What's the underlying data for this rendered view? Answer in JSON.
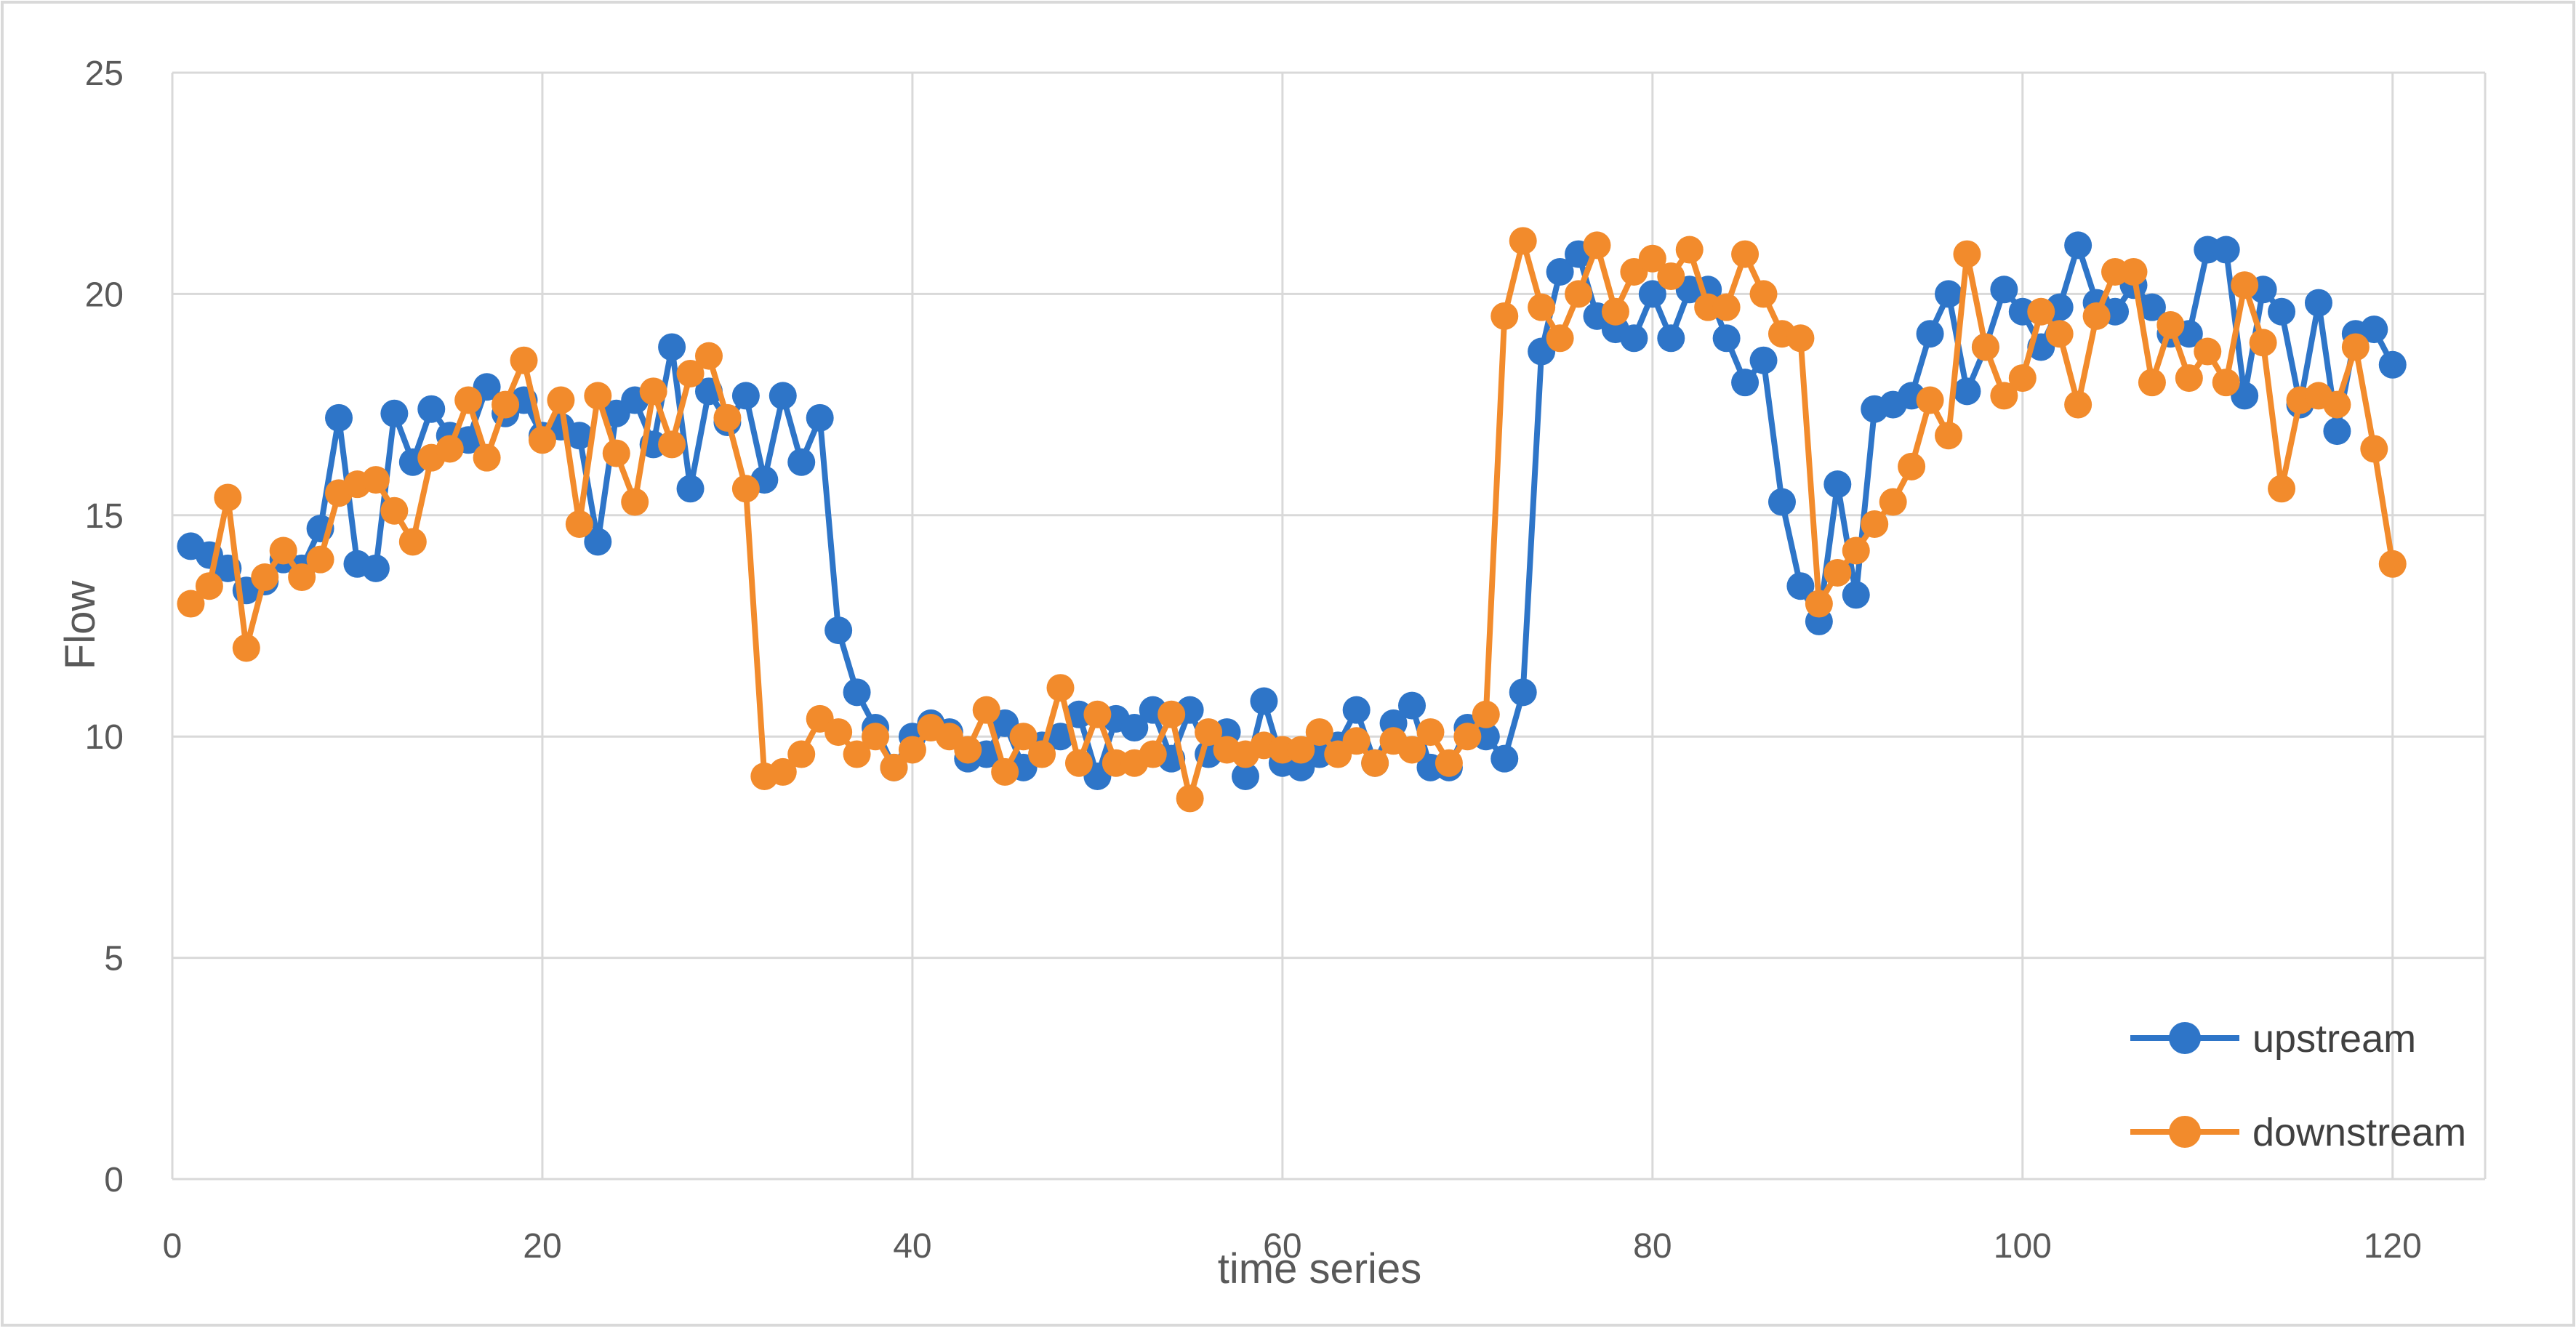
{
  "chart_data": {
    "type": "line",
    "title": "",
    "xlabel": "time series",
    "ylabel": "Flow",
    "xlim": [
      0,
      125
    ],
    "ylim": [
      0,
      25
    ],
    "x_ticks": [
      0,
      20,
      40,
      60,
      80,
      100,
      120
    ],
    "y_ticks": [
      0,
      5,
      10,
      15,
      20,
      25
    ],
    "grid": true,
    "legend_position": "bottom-right",
    "colors": {
      "upstream": "#2E75C8",
      "downstream": "#F28B2C",
      "grid": "#D9D9D9",
      "frame": "#D9D9D9"
    },
    "series": [
      {
        "name": "upstream",
        "values": [
          14.3,
          14.1,
          13.8,
          13.3,
          13.5,
          14.0,
          13.8,
          14.7,
          17.2,
          13.9,
          13.8,
          17.3,
          16.2,
          17.4,
          16.8,
          16.7,
          17.9,
          17.3,
          17.6,
          16.8,
          17.0,
          16.8,
          14.4,
          17.3,
          17.6,
          16.6,
          18.8,
          15.6,
          17.8,
          17.1,
          17.7,
          15.8,
          17.7,
          16.2,
          17.2,
          12.4,
          11.0,
          10.2,
          9.3,
          10.0,
          10.3,
          10.1,
          9.5,
          9.6,
          10.3,
          9.3,
          9.8,
          10.0,
          10.5,
          9.1,
          10.4,
          10.2,
          10.6,
          9.5,
          10.6,
          9.6,
          10.1,
          9.1,
          10.8,
          9.4,
          9.3,
          9.6,
          9.8,
          10.6,
          9.4,
          10.3,
          10.7,
          9.3,
          9.3,
          10.2,
          10.0,
          9.5,
          11.0,
          18.7,
          20.5,
          20.9,
          19.5,
          19.2,
          19.0,
          20.0,
          19.0,
          20.1,
          20.1,
          19.0,
          18.0,
          18.5,
          15.3,
          13.4,
          12.6,
          15.7,
          13.2,
          17.4,
          17.5,
          17.7,
          19.1,
          20.0,
          17.8,
          18.8,
          20.1,
          19.6,
          18.8,
          19.7,
          21.1,
          19.8,
          19.6,
          20.2,
          19.7,
          19.1,
          19.1,
          21.0,
          21.0,
          17.7,
          20.1,
          19.6,
          17.5,
          19.8,
          16.9,
          19.1,
          19.2,
          18.4
        ]
      },
      {
        "name": "downstream",
        "values": [
          13.0,
          13.4,
          15.4,
          12.0,
          13.6,
          14.2,
          13.6,
          14.0,
          15.5,
          15.7,
          15.8,
          15.1,
          14.4,
          16.3,
          16.5,
          17.6,
          16.3,
          17.5,
          18.5,
          16.7,
          17.6,
          14.8,
          17.7,
          16.4,
          15.3,
          17.8,
          16.6,
          18.2,
          18.6,
          17.2,
          15.6,
          9.1,
          9.2,
          9.6,
          10.4,
          10.1,
          9.6,
          10.0,
          9.3,
          9.7,
          10.2,
          10.0,
          9.7,
          10.6,
          9.2,
          10.0,
          9.6,
          11.1,
          9.4,
          10.5,
          9.4,
          9.4,
          9.6,
          10.5,
          8.6,
          10.1,
          9.7,
          9.6,
          9.8,
          9.7,
          9.7,
          10.1,
          9.6,
          9.9,
          9.4,
          9.9,
          9.7,
          10.1,
          9.4,
          10.0,
          10.5,
          19.5,
          21.2,
          19.7,
          19.0,
          20.0,
          21.1,
          19.6,
          20.5,
          20.8,
          20.4,
          21.0,
          19.7,
          19.7,
          20.9,
          20.0,
          19.1,
          19.0,
          13.0,
          13.7,
          14.2,
          14.8,
          15.3,
          16.1,
          17.6,
          16.8,
          20.9,
          18.8,
          17.7,
          18.1,
          19.6,
          19.1,
          17.5,
          19.5,
          20.5,
          20.5,
          18.0,
          19.3,
          18.1,
          18.7,
          18.0,
          20.2,
          18.9,
          15.6,
          17.6,
          17.7,
          17.5,
          18.8,
          16.5,
          13.9
        ]
      }
    ]
  }
}
